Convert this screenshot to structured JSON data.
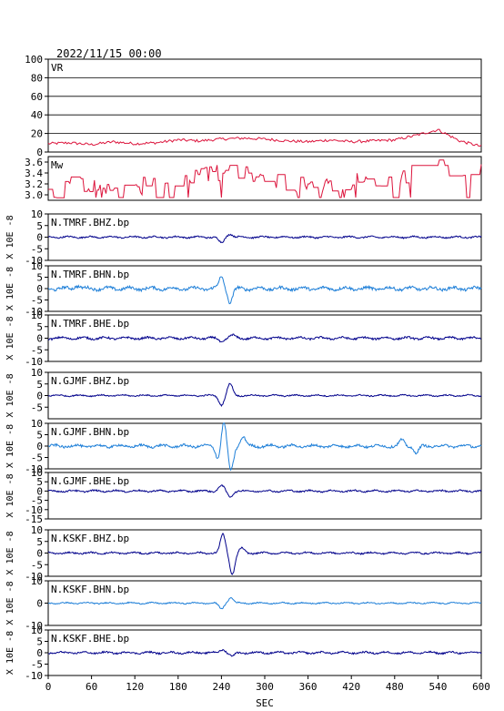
{
  "header": {
    "datetime": "2022/11/15 00:00"
  },
  "colors": {
    "red": "#dc143c",
    "dark_blue": "#00008b",
    "light_blue": "#1e7fd8",
    "frame": "#000000"
  },
  "chart_data": {
    "type": "line",
    "xlabel": "SEC",
    "xlim": [
      0,
      600
    ],
    "xticks": [
      0,
      60,
      120,
      180,
      240,
      300,
      360,
      420,
      480,
      540,
      600
    ],
    "panels": [
      {
        "label": "VR",
        "ylim": [
          0,
          100
        ],
        "yticks": [
          0,
          20,
          40,
          60,
          80,
          100
        ],
        "ylabel": "",
        "color": "red",
        "style": "noisy",
        "grid": true,
        "points": [
          [
            0,
            9
          ],
          [
            30,
            10
          ],
          [
            60,
            8
          ],
          [
            90,
            11
          ],
          [
            120,
            9
          ],
          [
            150,
            10
          ],
          [
            180,
            13
          ],
          [
            210,
            12
          ],
          [
            240,
            14
          ],
          [
            270,
            15
          ],
          [
            300,
            14
          ],
          [
            330,
            12
          ],
          [
            360,
            11
          ],
          [
            390,
            13
          ],
          [
            420,
            11
          ],
          [
            450,
            12
          ],
          [
            480,
            13
          ],
          [
            510,
            18
          ],
          [
            540,
            24
          ],
          [
            570,
            12
          ],
          [
            600,
            6
          ]
        ]
      },
      {
        "label": "Mw",
        "ylim": [
          2.9,
          3.7
        ],
        "yticks": [
          3.0,
          3.2,
          3.4,
          3.6
        ],
        "yticklabels": [
          "3.0",
          "3.2",
          "3.4",
          "3.6"
        ],
        "ylabel": "",
        "color": "red",
        "style": "steps",
        "points": [
          [
            0,
            3.1
          ],
          [
            60,
            3.2
          ],
          [
            120,
            3.15
          ],
          [
            180,
            3.3
          ],
          [
            240,
            3.4
          ],
          [
            300,
            3.3
          ],
          [
            360,
            3.2
          ],
          [
            420,
            3.25
          ],
          [
            480,
            3.3
          ],
          [
            540,
            3.55
          ],
          [
            600,
            3.4
          ]
        ]
      },
      {
        "label": "N.TMRF.BHZ.bp",
        "ylim": [
          -10,
          10
        ],
        "yticks": [
          -10,
          -5,
          0,
          5,
          10
        ],
        "ylabel": "X 10E -8",
        "color": "dark_blue",
        "style": "wave",
        "amp": 0.6,
        "events": [
          [
            240,
            -2.5
          ],
          [
            252,
            1.5
          ]
        ]
      },
      {
        "label": "N.TMRF.BHN.bp",
        "ylim": [
          -10,
          10
        ],
        "yticks": [
          -10,
          -5,
          0,
          5,
          10
        ],
        "ylabel": "X 10E -8",
        "color": "light_blue",
        "style": "wave",
        "amp": 1.2,
        "events": [
          [
            240,
            5
          ],
          [
            252,
            -6
          ],
          [
            40,
            1.5
          ]
        ]
      },
      {
        "label": "N.TMRF.BHE.bp",
        "ylim": [
          -10,
          10
        ],
        "yticks": [
          -10,
          -5,
          0,
          5,
          10
        ],
        "ylabel": "X 10E -8",
        "color": "dark_blue",
        "style": "wave",
        "amp": 0.8,
        "events": [
          [
            240,
            -1.5
          ],
          [
            255,
            1.2
          ]
        ]
      },
      {
        "label": "N.GJMF.BHZ.bp",
        "ylim": [
          -10,
          10
        ],
        "yticks": [
          -5,
          0,
          5,
          10
        ],
        "ylabel": "X 10E -8",
        "color": "dark_blue",
        "style": "wave",
        "amp": 0.5,
        "events": [
          [
            240,
            -4
          ],
          [
            252,
            5
          ]
        ]
      },
      {
        "label": "N.GJMF.BHN.bp",
        "ylim": [
          -10,
          10
        ],
        "yticks": [
          -10,
          -5,
          0,
          5,
          10
        ],
        "ylabel": "X 10E -8",
        "color": "light_blue",
        "style": "wave",
        "amp": 1.0,
        "events": [
          [
            236,
            -6
          ],
          [
            243,
            11
          ],
          [
            253,
            -11
          ],
          [
            270,
            4
          ],
          [
            490,
            2.5
          ],
          [
            510,
            -3
          ]
        ]
      },
      {
        "label": "N.GJMF.BHE.bp",
        "ylim": [
          -15,
          10
        ],
        "yticks": [
          -15,
          -10,
          -5,
          0,
          5,
          10
        ],
        "ylabel": "X 10E -8",
        "color": "dark_blue",
        "style": "wave",
        "amp": 0.8,
        "events": [
          [
            240,
            3
          ],
          [
            252,
            -3
          ]
        ]
      },
      {
        "label": "N.KSKF.BHZ.bp",
        "ylim": [
          -10,
          10
        ],
        "yticks": [
          -10,
          -5,
          0,
          5,
          10
        ],
        "ylabel": "X 10E -8",
        "color": "dark_blue",
        "style": "wave",
        "amp": 0.6,
        "events": [
          [
            242,
            8
          ],
          [
            255,
            -9
          ],
          [
            268,
            2
          ]
        ]
      },
      {
        "label": "N.KSKF.BHN.bp",
        "ylim": [
          -10,
          10
        ],
        "yticks": [
          -10,
          0,
          10
        ],
        "ylabel": "X 10E -8",
        "color": "light_blue",
        "style": "wave",
        "amp": 0.5,
        "events": [
          [
            240,
            -2.5
          ],
          [
            253,
            2.5
          ]
        ]
      },
      {
        "label": "N.KSKF.BHE.bp",
        "ylim": [
          -10,
          10
        ],
        "yticks": [
          -10,
          -5,
          0,
          5,
          10
        ],
        "ylabel": "X 10E -8",
        "color": "dark_blue",
        "style": "wave",
        "amp": 0.7,
        "events": [
          [
            242,
            1.5
          ],
          [
            255,
            -1.5
          ]
        ]
      }
    ]
  }
}
